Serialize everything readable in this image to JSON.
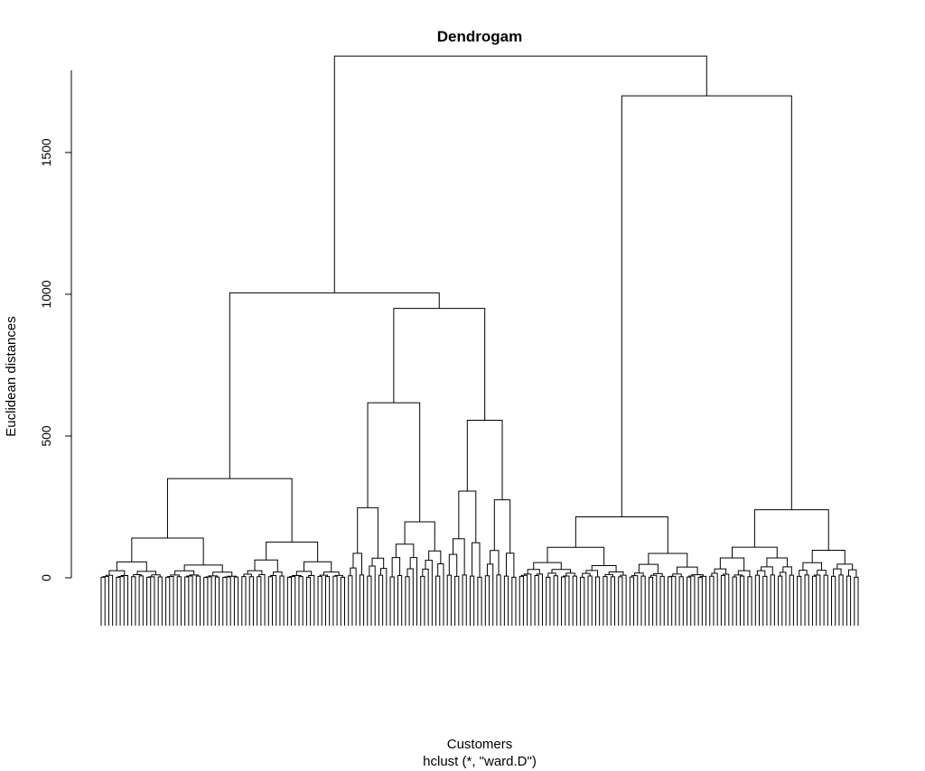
{
  "chart_data": {
    "type": "dendrogram",
    "title": "Dendrogam",
    "xlabel": "Customers",
    "ylabel": "Euclidean distances",
    "subtitle": "hclust (*, \"ward.D\")",
    "ylim": [
      0,
      1850
    ],
    "yticks": [
      0,
      500,
      1000,
      1500
    ],
    "leaf_count": 200,
    "top_merges": [
      {
        "height": 1840,
        "description": "root merge"
      },
      {
        "height": 1700,
        "description": "right branch"
      },
      {
        "height": 1005,
        "description": "left branch"
      },
      {
        "height": 950,
        "description": "left-right sub-branch"
      },
      {
        "height": 350,
        "description": "left-left sub-branch"
      },
      {
        "height": 240,
        "description": "right-right sub-branch"
      },
      {
        "height": 215,
        "description": "right-left sub-branch"
      },
      {
        "height": 175,
        "description": "cluster"
      },
      {
        "height": 160,
        "description": "cluster"
      },
      {
        "height": 145,
        "description": "cluster"
      },
      {
        "height": 110,
        "description": "cluster"
      },
      {
        "height": 108,
        "description": "cluster"
      },
      {
        "height": 108,
        "description": "cluster"
      },
      {
        "height": 95,
        "description": "cluster"
      },
      {
        "height": 95,
        "description": "cluster"
      }
    ]
  }
}
